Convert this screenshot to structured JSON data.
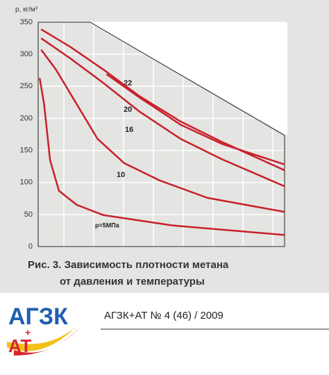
{
  "chart_data": {
    "type": "line",
    "y_label": "p, кг/м³",
    "caption": [
      "Рис. 3. Зависимость плотности метана",
      "от давления и температуры"
    ],
    "ylim": [
      0,
      350
    ],
    "yticks": [
      0,
      50,
      100,
      150,
      200,
      250,
      300,
      350
    ],
    "xlim": [
      0,
      8.3
    ],
    "grid": true,
    "series": [
      {
        "name": "22",
        "color": "#c8202a",
        "x": [
          2.3,
          3.4,
          4.8,
          6.2,
          8.3
        ],
        "values": [
          269,
          233,
          190,
          160,
          128
        ]
      },
      {
        "name": "20",
        "color": "#c8202a",
        "x": [
          0.1,
          1.1,
          2.2,
          3.4,
          4.8,
          6.2,
          8.3
        ],
        "values": [
          339,
          311,
          276,
          235,
          195,
          163,
          119
        ]
      },
      {
        "name": "16",
        "color": "#c8202a",
        "x": [
          0.1,
          1.1,
          2.2,
          3.4,
          4.8,
          6.2,
          8.3
        ],
        "values": [
          325,
          293,
          255,
          211,
          168,
          136,
          94
        ]
      },
      {
        "name": "10",
        "color": "#c8202a",
        "x": [
          0.1,
          0.6,
          1.3,
          2.0,
          2.9,
          4.1,
          5.7,
          8.3
        ],
        "values": [
          307,
          276,
          222,
          168,
          130,
          103,
          76,
          54
        ]
      },
      {
        "name": "p=5МПа",
        "color": "#c8202a",
        "x": [
          0.05,
          0.2,
          0.4,
          0.7,
          1.3,
          2.2,
          4.5,
          8.3
        ],
        "values": [
          263,
          222,
          135,
          87,
          65,
          49,
          33,
          18
        ]
      }
    ]
  },
  "logo": {
    "top": "АГЗК",
    "plus": "+",
    "bottom": "АТ"
  },
  "footer_text": "АГЗК+АТ № 4 (46) / 2009"
}
